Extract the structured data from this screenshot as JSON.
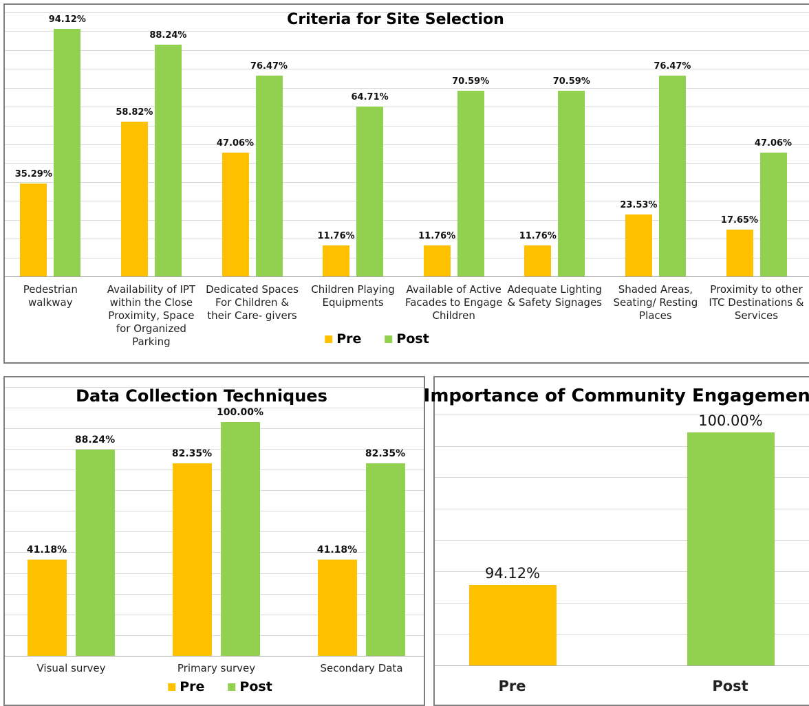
{
  "chart_data": [
    {
      "type": "bar",
      "title": "Criteria for Site Selection",
      "categories": [
        "Pedestrian walkway",
        "Availability of IPT within the Close Proximity, Space for Organized Parking",
        "Dedicated Spaces For Children & their Care- givers",
        "Children Playing Equipments",
        "Available of Active Facades to Engage Children",
        "Adequate Lighting & Safety Signages",
        "Shaded Areas, Seating/ Resting Places",
        "Proximity to other ITC Destinations & Services"
      ],
      "series": [
        {
          "name": "Pre",
          "color": "#ffc000",
          "values": [
            35.29,
            58.82,
            47.06,
            11.76,
            11.76,
            11.76,
            23.53,
            17.65
          ],
          "value_labels": [
            "35.29%",
            "58.82%",
            "47.06%",
            "11.76%",
            "11.76%",
            "11.76%",
            "23.53%",
            "17.65%"
          ]
        },
        {
          "name": "Post",
          "color": "#92d050",
          "values": [
            94.12,
            88.24,
            76.47,
            64.71,
            70.59,
            70.59,
            76.47,
            47.06
          ],
          "value_labels": [
            "94.12%",
            "88.24%",
            "76.47%",
            "64.71%",
            "70.59%",
            "70.59%",
            "76.47%",
            "47.06%"
          ]
        }
      ],
      "ylim": [
        0,
        100.4
      ],
      "grid": true,
      "legend": "bottom"
    },
    {
      "type": "bar",
      "title": "Data Collection Techniques",
      "categories": [
        "Visual survey",
        "Primary survey",
        "Secondary Data"
      ],
      "series": [
        {
          "name": "Pre",
          "color": "#ffc000",
          "values": [
            41.18,
            82.35,
            41.18
          ],
          "value_labels": [
            "41.18%",
            "82.35%",
            "41.18%"
          ]
        },
        {
          "name": "Post",
          "color": "#92d050",
          "values": [
            88.24,
            100,
            82.35
          ],
          "value_labels": [
            "88.24%",
            "100.00%",
            "82.35%"
          ]
        }
      ],
      "ylim": [
        0,
        115
      ],
      "grid": true,
      "legend": "bottom"
    },
    {
      "type": "bar",
      "title": "Importance of Community Engagement",
      "categories": [
        "Pre",
        "Post"
      ],
      "values": [
        94.12,
        100
      ],
      "value_labels": [
        "94.12%",
        "100.00%"
      ],
      "colors": [
        "#ffc000",
        "#92d050"
      ],
      "ylim": [
        91,
        100.7
      ],
      "grid": true
    }
  ]
}
